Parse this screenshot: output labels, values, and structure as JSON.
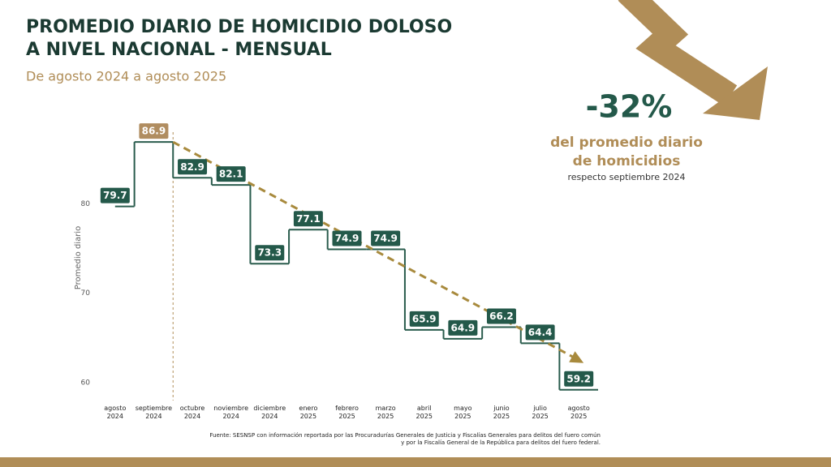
{
  "chart_data": {
    "type": "step",
    "title": [
      "PROMEDIO DIARIO DE HOMICIDIO DOLOSO",
      "A NIVEL NACIONAL - MENSUAL"
    ],
    "subtitle": "De agosto 2024 a agosto 2025",
    "y_label": "Promedio diario",
    "categories": [
      "agosto 2024",
      "septiembre 2024",
      "octubre 2024",
      "noviembre 2024",
      "diciembre 2024",
      "enero 2025",
      "febrero 2025",
      "marzo 2025",
      "abril 2025",
      "mayo 2025",
      "junio 2025",
      "julio 2025",
      "agosto 2025"
    ],
    "series": [
      {
        "name": "Promedio diario",
        "color": "#2a5c4d",
        "values": [
          79.7,
          86.9,
          82.9,
          82.1,
          73.3,
          77.1,
          74.9,
          74.9,
          65.9,
          64.9,
          66.2,
          64.4,
          59.2
        ],
        "label_colors": [
          "#24594a",
          "#b08d60",
          "#24594a",
          "#24594a",
          "#24594a",
          "#24594a",
          "#24594a",
          "#24594a",
          "#24594a",
          "#24594a",
          "#24594a",
          "#24594a",
          "#24594a"
        ]
      }
    ],
    "trend_color": "#a88a3d",
    "ylim": [
      58,
      88
    ],
    "yticks": [
      60,
      70,
      80
    ],
    "annotation": {
      "change": "-32%",
      "lines": [
        "del promedio diario",
        "de homicidios"
      ],
      "note": "respecto septiembre 2024"
    },
    "source": [
      "Fuente: SESNSP con información reportada por las Procuradurías Generales de Justicia y Fiscalías Generales para delitos del fuero común",
      "y por la Fiscalía General de la República para delitos del fuero federal."
    ]
  }
}
